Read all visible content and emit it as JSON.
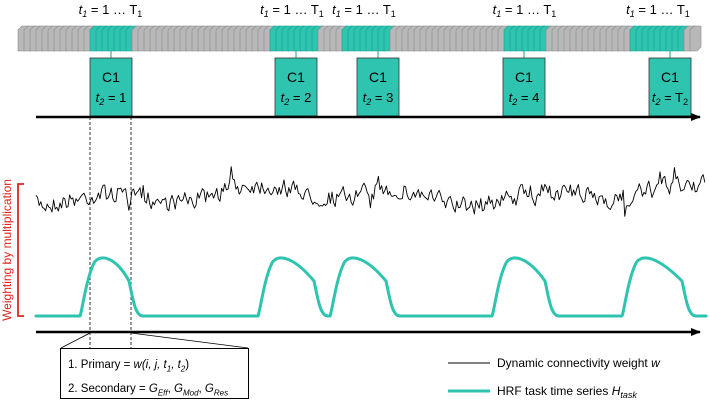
{
  "colors": {
    "task": "#2ec4b0",
    "task_dark": "#18a08f",
    "frame_gray": "#b8b8b8",
    "frame_dark": "#8a8a8a",
    "weighting": "#e0241b",
    "signal": "#000000"
  },
  "frames_label": {
    "t": "t",
    "sub": "1",
    "rest": " = 1 … T",
    "rest_sub": "1"
  },
  "task_blocks": [
    {
      "top": "C1",
      "var": "t",
      "sub": "2",
      "eq": " = ",
      "val": "1",
      "val_sub": ""
    },
    {
      "top": "C1",
      "var": "t",
      "sub": "2",
      "eq": " = ",
      "val": "2",
      "val_sub": ""
    },
    {
      "top": "C1",
      "var": "t",
      "sub": "2",
      "eq": " = ",
      "val": "3",
      "val_sub": ""
    },
    {
      "top": "C1",
      "var": "t",
      "sub": "2",
      "eq": " = ",
      "val": "4",
      "val_sub": ""
    },
    {
      "top": "C1",
      "var": "t",
      "sub": "2",
      "eq": " = ",
      "val": "T",
      "val_sub": "2"
    }
  ],
  "side_label": "Weighting by multiplication",
  "definitions": {
    "primary_prefix": "1. Primary = ",
    "primary_formula": "w(i, j, t",
    "primary_formula_2": ", t",
    "primary_formula_end": ")",
    "sub1": "1",
    "sub2": "2",
    "secondary_prefix": "2. Secondary = ",
    "g": "G",
    "eff": "Eff",
    "mod": "Mod",
    "res": "Res",
    "sep": ", "
  },
  "legend": {
    "connectivity_label": "Dynamic connectivity weight ",
    "connectivity_var": "w",
    "hrf_label": "HRF task time series ",
    "hrf_var": "H",
    "hrf_sub": "task"
  }
}
